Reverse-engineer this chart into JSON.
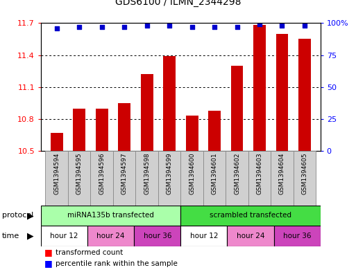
{
  "title": "GDS6100 / ILMN_2344298",
  "samples": [
    "GSM1394594",
    "GSM1394595",
    "GSM1394596",
    "GSM1394597",
    "GSM1394598",
    "GSM1394599",
    "GSM1394600",
    "GSM1394601",
    "GSM1394602",
    "GSM1394603",
    "GSM1394604",
    "GSM1394605"
  ],
  "bar_values": [
    10.67,
    10.9,
    10.9,
    10.95,
    11.22,
    11.39,
    10.83,
    10.88,
    11.3,
    11.68,
    11.6,
    11.55
  ],
  "percentile_values": [
    96,
    97,
    97,
    97,
    98,
    98,
    97,
    97,
    97,
    99,
    98,
    98
  ],
  "ymin": 10.5,
  "ymax": 11.7,
  "yticks": [
    10.5,
    10.8,
    11.1,
    11.4,
    11.7
  ],
  "right_ytick_labels": [
    "0",
    "25",
    "50",
    "75",
    "100%"
  ],
  "right_ytick_vals": [
    0,
    25,
    50,
    75,
    100
  ],
  "bar_color": "#cc0000",
  "dot_color": "#0000cc",
  "sample_cell_color": "#d0d0d0",
  "protocol_row": [
    {
      "label": "miRNA135b transfected",
      "start": 0,
      "end": 6,
      "color": "#aaffaa"
    },
    {
      "label": "scrambled transfected",
      "start": 6,
      "end": 12,
      "color": "#44dd44"
    }
  ],
  "time_row": [
    {
      "label": "hour 12",
      "start": 0,
      "end": 2,
      "color": "#ffffff"
    },
    {
      "label": "hour 24",
      "start": 2,
      "end": 4,
      "color": "#ee88cc"
    },
    {
      "label": "hour 36",
      "start": 4,
      "end": 6,
      "color": "#cc44bb"
    },
    {
      "label": "hour 12",
      "start": 6,
      "end": 8,
      "color": "#ffffff"
    },
    {
      "label": "hour 24",
      "start": 8,
      "end": 10,
      "color": "#ee88cc"
    },
    {
      "label": "hour 36",
      "start": 10,
      "end": 12,
      "color": "#cc44bb"
    }
  ],
  "legend_red_label": "transformed count",
  "legend_blue_label": "percentile rank within the sample",
  "protocol_label": "protocol",
  "time_label": "time"
}
